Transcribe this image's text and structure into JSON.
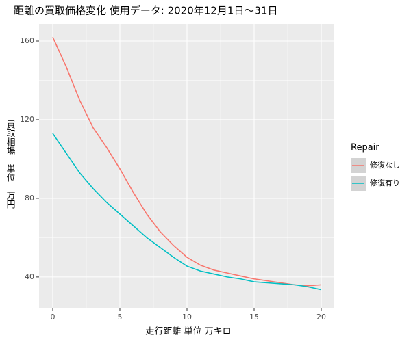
{
  "chart_data": {
    "type": "line",
    "title": "距離の買取価格変化 使用データ: 2020年12月1日～31日",
    "x_label": "走行距離 単位 万キロ",
    "y_label": "買取相場　単位　万円",
    "legend_title": "Repair",
    "x": [
      0,
      1,
      2,
      3,
      4,
      5,
      6,
      7,
      8,
      9,
      10,
      11,
      12,
      13,
      14,
      15,
      16,
      17,
      18,
      19,
      20
    ],
    "series": [
      {
        "name": "修復なし",
        "color": "#f8766d",
        "values": [
          162,
          147,
          130,
          116,
          106,
          95,
          83,
          72,
          63,
          56,
          50,
          46,
          43.5,
          42,
          40.5,
          39,
          38,
          37,
          36,
          35.5,
          36
        ]
      },
      {
        "name": "修復有り",
        "color": "#00bfc4",
        "values": [
          113,
          103,
          93,
          85,
          78,
          72,
          66,
          60,
          55,
          50,
          45.5,
          43,
          41.5,
          40,
          39,
          37.5,
          37,
          36.5,
          36,
          35,
          33.5
        ]
      }
    ],
    "xlim": [
      -1.02,
      20.97
    ],
    "xticks": [
      0,
      5,
      10,
      15,
      20
    ],
    "ylim": [
      24.3,
      168.7
    ],
    "yticks": [
      40,
      80,
      120,
      160
    ],
    "grid": true,
    "legend": "right"
  }
}
